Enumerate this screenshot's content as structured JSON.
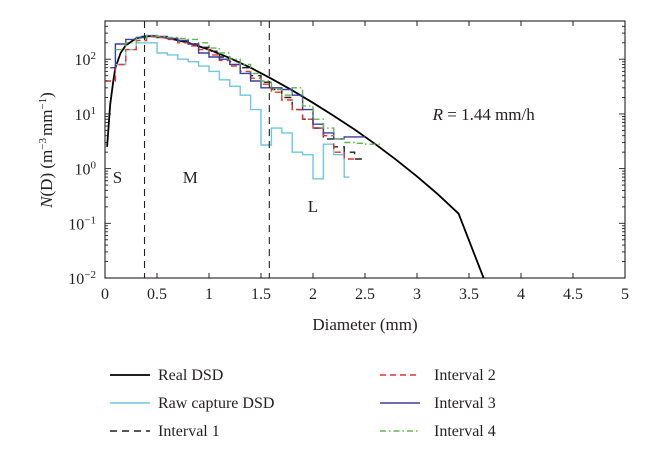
{
  "chart_data": {
    "type": "line",
    "title": "",
    "xlabel": "Diameter (mm)",
    "ylabel": "N(D) (m⁻³ mm⁻¹)",
    "ylabel_parts": {
      "base": "N",
      "arg": "(D)",
      "unit_a": " (m",
      "exp_a": "−3",
      "unit_b": "mm",
      "exp_b": "−1",
      "close": ")"
    },
    "xlim": [
      0,
      5
    ],
    "ylim": [
      0.01,
      500
    ],
    "y_scale": "log",
    "grid": false,
    "legend_position": "below plot",
    "x_ticks": [
      0,
      0.5,
      1,
      1.5,
      2,
      2.5,
      3,
      3.5,
      4,
      4.5,
      5
    ],
    "x_tick_labels": [
      "0",
      "0.5",
      "1",
      "1.5",
      "2",
      "2.5",
      "3",
      "3.5",
      "4",
      "4.5",
      "5"
    ],
    "y_ticks": [
      {
        "value": 0.01,
        "base": "10",
        "exp": "−2"
      },
      {
        "value": 0.1,
        "base": "10",
        "exp": "−1"
      },
      {
        "value": 1,
        "base": "10",
        "exp": "0"
      },
      {
        "value": 10,
        "base": "10",
        "exp": "1"
      },
      {
        "value": 100,
        "base": "10",
        "exp": "2"
      }
    ],
    "annotation": {
      "var": "R",
      "text": " = 1.44 mm/h",
      "x": 3.15,
      "y": 10
    },
    "regions": [
      {
        "label": "S",
        "x": 0.12,
        "y": 0.55
      },
      {
        "label": "M",
        "x": 0.82,
        "y": 0.55
      },
      {
        "label": "L",
        "x": 2.0,
        "y": 0.16
      }
    ],
    "interval_lines": [
      0.38,
      1.58
    ],
    "series": [
      {
        "name": "Real DSD",
        "color": "#000000",
        "dash": "none",
        "style": "line",
        "x": [
          0.02,
          0.05,
          0.08,
          0.1,
          0.15,
          0.2,
          0.3,
          0.4,
          0.5,
          0.6,
          0.8,
          1.0,
          1.2,
          1.4,
          1.6,
          1.8,
          2.0,
          2.2,
          2.4,
          2.6,
          2.8,
          3.0,
          3.2,
          3.4,
          3.64
        ],
        "y": [
          2.5,
          15,
          40,
          70,
          130,
          180,
          240,
          265,
          260,
          245,
          200,
          150,
          105,
          70,
          44,
          27,
          16,
          9.2,
          5.2,
          2.8,
          1.45,
          0.72,
          0.34,
          0.15,
          0.01
        ]
      },
      {
        "name": "Raw capture DSD",
        "color": "#6ec6e0",
        "dash": "none",
        "style": "step",
        "edges": [
          0.1,
          0.2,
          0.3,
          0.4,
          0.5,
          0.6,
          0.7,
          0.8,
          0.9,
          1.0,
          1.1,
          1.2,
          1.3,
          1.4,
          1.5,
          1.6,
          1.7,
          1.8,
          1.9,
          2.0,
          2.1,
          2.2,
          2.3,
          2.35
        ],
        "values": [
          80,
          150,
          200,
          200,
          130,
          120,
          100,
          90,
          75,
          60,
          42,
          32,
          22,
          12,
          2.7,
          5.5,
          4.5,
          2.0,
          1.8,
          0.65,
          2.8,
          1.8,
          0.7
        ]
      },
      {
        "name": "Interval 1",
        "color": "#231f20",
        "dash": "7,5",
        "style": "step",
        "edges": [
          0.35,
          0.5,
          0.6,
          0.7,
          0.8,
          0.9,
          1.0,
          1.1,
          1.2,
          1.3,
          1.4,
          1.5,
          1.6,
          1.7,
          1.8,
          1.9,
          2.0,
          2.1,
          2.2,
          2.3,
          2.4,
          2.5
        ],
        "values": [
          260,
          250,
          240,
          220,
          190,
          165,
          140,
          110,
          90,
          70,
          50,
          38,
          28,
          20,
          12,
          8,
          5.5,
          3.5,
          2.5,
          2.0,
          1.5
        ]
      },
      {
        "name": "Interval 2",
        "color": "#e8312f",
        "dash": "6,4",
        "style": "step",
        "edges": [
          0.0,
          0.1,
          0.2,
          0.3,
          0.4,
          0.5,
          0.6,
          0.7,
          0.8,
          0.9,
          1.0,
          1.1,
          1.2,
          1.3,
          1.4,
          1.5,
          1.6,
          1.7,
          1.8,
          1.9,
          2.0,
          2.1,
          2.2,
          2.3,
          2.4
        ],
        "values": [
          40,
          80,
          150,
          220,
          260,
          250,
          230,
          200,
          175,
          150,
          120,
          95,
          75,
          60,
          45,
          35,
          25,
          18,
          12,
          8,
          5.5,
          4.0,
          2.0,
          1.5
        ]
      },
      {
        "name": "Interval 3",
        "color": "#3d3d9e",
        "dash": "none",
        "style": "step",
        "edges": [
          0.05,
          0.1,
          0.2,
          0.3,
          0.4,
          0.5,
          0.6,
          0.7,
          0.8,
          0.9,
          1.0,
          1.1,
          1.2,
          1.3,
          1.4,
          1.5,
          1.6,
          1.7,
          1.8,
          1.9,
          2.0,
          2.1,
          2.2,
          2.3,
          2.4,
          2.5
        ],
        "values": [
          70,
          190,
          230,
          250,
          270,
          260,
          240,
          220,
          190,
          130,
          110,
          100,
          80,
          55,
          40,
          30,
          30,
          28,
          22,
          12,
          6.5,
          4.5,
          3.5,
          3.8,
          3.8
        ]
      },
      {
        "name": "Interval 4",
        "color": "#5cb84a",
        "dash": "6,3,1.5,3",
        "style": "step",
        "edges": [
          0.1,
          0.2,
          0.3,
          0.4,
          0.5,
          0.6,
          0.7,
          0.8,
          0.9,
          1.0,
          1.1,
          1.2,
          1.3,
          1.4,
          1.5,
          1.6,
          1.7,
          1.8,
          1.9,
          2.0,
          2.1,
          2.2,
          2.3,
          2.4,
          2.5,
          2.65
        ],
        "values": [
          150,
          200,
          240,
          270,
          260,
          250,
          240,
          230,
          200,
          160,
          130,
          100,
          80,
          55,
          40,
          28,
          22,
          30,
          14,
          8,
          5.5,
          3.5,
          3.0,
          2.9,
          2.8
        ]
      }
    ]
  }
}
